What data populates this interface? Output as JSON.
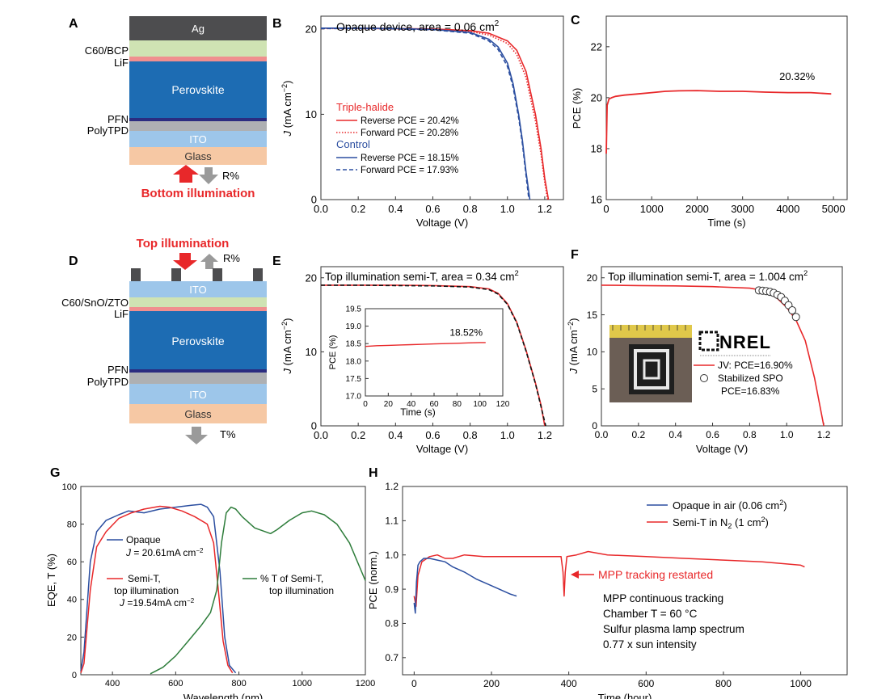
{
  "colors": {
    "red": "#e8282a",
    "blue": "#2b4ea0",
    "green": "#2e7d3b",
    "ag": "#4d4d4f",
    "c60": "#cfe3b3",
    "lif": "#f08f8f",
    "perovskite": "#1d6cb3",
    "pfn": "#2b2c80",
    "polytpd": "#aeb0b3",
    "ito": "#9dc6ea",
    "glass": "#f6c8a4",
    "gray_arrow": "#9a9a9a"
  },
  "panel_a": {
    "letter": "A",
    "layers": [
      "Ag",
      "C60/BCP",
      "LiF",
      "Perovskite",
      "PFN",
      "PolyTPD",
      "ITO",
      "Glass"
    ],
    "r_label": "R%",
    "illumination": "Bottom illumination"
  },
  "panel_d": {
    "letter": "D",
    "illumination": "Top illumination",
    "r_label": "R%",
    "t_label": "T%",
    "layers": [
      "ITO",
      "C60/SnO/ZTO",
      "LiF",
      "Perovskite",
      "PFN",
      "PolyTPD",
      "ITO",
      "Glass"
    ]
  },
  "chart_data": [
    {
      "id": "B",
      "letter": "B",
      "type": "line",
      "title_pre": "Opaque device, area = 0.06 cm",
      "title_sup": "2",
      "xlabel": "Voltage (V)",
      "ylabel_pre": "J (mA cm",
      "ylabel_sup": "−2",
      "ylabel_post": ")",
      "xlim": [
        0,
        1.3
      ],
      "ylim": [
        0,
        21.5
      ],
      "xticks": [
        "0.0",
        "0.2",
        "0.4",
        "0.6",
        "0.8",
        "1.0",
        "1.2"
      ],
      "xtick_values": [
        0,
        0.2,
        0.4,
        0.6,
        0.8,
        1.0,
        1.2
      ],
      "yticks": [
        "0",
        "10",
        "20"
      ],
      "ytick_values": [
        0,
        10,
        20
      ],
      "legend": {
        "group1": "Triple-halide",
        "group2": "Control",
        "entries": [
          "Reverse  PCE = 20.42%",
          "Forward  PCE = 20.28%",
          "Reverse  PCE = 18.15%",
          "Forward  PCE = 17.93%"
        ]
      },
      "series": [
        {
          "group": "Triple-halide",
          "style": "solid-red",
          "x": [
            0,
            0.2,
            0.4,
            0.6,
            0.8,
            0.9,
            1.0,
            1.05,
            1.1,
            1.15,
            1.18,
            1.2,
            1.22
          ],
          "y": [
            20.1,
            20.1,
            20.05,
            20.0,
            19.8,
            19.5,
            18.6,
            17.5,
            15.0,
            10.0,
            6.0,
            2.5,
            0
          ]
        },
        {
          "group": "Triple-halide",
          "style": "dotted-red",
          "x": [
            0,
            0.2,
            0.4,
            0.6,
            0.8,
            0.9,
            1.0,
            1.05,
            1.1,
            1.15,
            1.18,
            1.2,
            1.215
          ],
          "y": [
            20.05,
            20.05,
            20.0,
            19.95,
            19.7,
            19.3,
            18.3,
            17.0,
            14.3,
            9.2,
            5.3,
            2.0,
            0
          ]
        },
        {
          "group": "Control",
          "style": "solid-blue",
          "x": [
            0,
            0.2,
            0.4,
            0.6,
            0.8,
            0.9,
            0.95,
            1.0,
            1.03,
            1.06,
            1.08,
            1.1,
            1.12
          ],
          "y": [
            20.1,
            20.1,
            20.05,
            19.95,
            19.6,
            18.8,
            17.9,
            16.0,
            13.6,
            10.0,
            7.0,
            3.2,
            0
          ]
        },
        {
          "group": "Control",
          "style": "dashed-blue",
          "x": [
            0,
            0.2,
            0.4,
            0.6,
            0.8,
            0.9,
            0.95,
            1.0,
            1.03,
            1.06,
            1.08,
            1.1,
            1.115
          ],
          "y": [
            20.05,
            20.05,
            20.0,
            19.9,
            19.5,
            18.6,
            17.6,
            15.6,
            13.2,
            9.6,
            6.6,
            2.8,
            0
          ]
        }
      ]
    },
    {
      "id": "C",
      "letter": "C",
      "type": "line",
      "xlabel": "Time (s)",
      "ylabel": "PCE (%)",
      "xlim": [
        0,
        5300
      ],
      "ylim": [
        16,
        23.2
      ],
      "xticks": [
        "0",
        "1000",
        "2000",
        "3000",
        "4000",
        "5000"
      ],
      "xtick_values": [
        0,
        1000,
        2000,
        3000,
        4000,
        5000
      ],
      "yticks": [
        "16",
        "18",
        "20",
        "22"
      ],
      "ytick_values": [
        16,
        18,
        20,
        22
      ],
      "annotation": "20.32%",
      "series": [
        {
          "x": [
            0,
            20,
            60,
            120,
            200,
            400,
            700,
            1000,
            1300,
            1600,
            2000,
            2500,
            3000,
            3500,
            4000,
            4500,
            4950
          ],
          "y": [
            17.8,
            19.7,
            19.95,
            20.0,
            20.05,
            20.1,
            20.15,
            20.2,
            20.25,
            20.27,
            20.28,
            20.25,
            20.25,
            20.22,
            20.2,
            20.2,
            20.15
          ]
        }
      ]
    },
    {
      "id": "E",
      "letter": "E",
      "type": "line",
      "title_pre": "Top illumination semi-T, area = 0.34 cm",
      "title_sup": "2",
      "xlabel": "Voltage (V)",
      "ylabel_pre": "J (mA cm",
      "ylabel_sup": "−2",
      "ylabel_post": ")",
      "xlim": [
        0,
        1.3
      ],
      "ylim": [
        0,
        21.5
      ],
      "xticks": [
        "0.0",
        "0.2",
        "0.4",
        "0.6",
        "0.8",
        "1.0",
        "1.2"
      ],
      "xtick_values": [
        0,
        0.2,
        0.4,
        0.6,
        0.8,
        1.0,
        1.2
      ],
      "yticks": [
        "0",
        "10",
        "20"
      ],
      "ytick_values": [
        0,
        10,
        20
      ],
      "series": [
        {
          "style": "solid-red",
          "x": [
            0,
            0.2,
            0.4,
            0.6,
            0.8,
            0.9,
            0.95,
            1.0,
            1.05,
            1.1,
            1.15,
            1.18,
            1.2
          ],
          "y": [
            19.0,
            19.0,
            19.0,
            18.95,
            18.8,
            18.5,
            17.9,
            16.5,
            14.0,
            10.2,
            5.8,
            2.8,
            0
          ]
        },
        {
          "style": "dashed-black",
          "x": [
            0,
            0.2,
            0.4,
            0.6,
            0.8,
            0.9,
            0.95,
            1.0,
            1.05,
            1.1,
            1.15,
            1.18,
            1.205
          ],
          "y": [
            19.0,
            19.0,
            18.95,
            18.9,
            18.75,
            18.4,
            17.8,
            16.4,
            13.9,
            10.1,
            5.7,
            2.6,
            0
          ]
        }
      ],
      "inset": {
        "xlabel": "Time (s)",
        "ylabel": "PCE (%)",
        "xlim": [
          0,
          120
        ],
        "ylim": [
          17.0,
          19.5
        ],
        "xticks": [
          "0",
          "20",
          "40",
          "60",
          "80",
          "100",
          "120"
        ],
        "xtick_values": [
          0,
          20,
          40,
          60,
          80,
          100,
          120
        ],
        "yticks": [
          "17.0",
          "17.5",
          "18.0",
          "18.5",
          "19.0",
          "19.5"
        ],
        "ytick_values": [
          17.0,
          17.5,
          18.0,
          18.5,
          19.0,
          19.5
        ],
        "annotation": "18.52%",
        "x": [
          0,
          10,
          20,
          30,
          40,
          50,
          60,
          70,
          80,
          90,
          100,
          105
        ],
        "y": [
          18.42,
          18.44,
          18.45,
          18.46,
          18.47,
          18.48,
          18.49,
          18.5,
          18.51,
          18.52,
          18.53,
          18.53
        ]
      }
    },
    {
      "id": "F",
      "letter": "F",
      "type": "line",
      "title_pre": "Top illumination semi-T, area = 1.004 cm",
      "title_sup": "2",
      "xlabel": "Voltage (V)",
      "ylabel_pre": "J (mA cm",
      "ylabel_sup": "−2",
      "ylabel_post": ")",
      "xlim": [
        0,
        1.3
      ],
      "ylim": [
        0,
        21.5
      ],
      "xticks": [
        "0.0",
        "0.2",
        "0.4",
        "0.6",
        "0.8",
        "1.0",
        "1.2"
      ],
      "xtick_values": [
        0,
        0.2,
        0.4,
        0.6,
        0.8,
        1.0,
        1.2
      ],
      "yticks": [
        "0",
        "5",
        "10",
        "15",
        "20"
      ],
      "ytick_values": [
        0,
        5,
        10,
        15,
        20
      ],
      "legend": {
        "entries": [
          "JV: PCE=16.90%",
          "Stabilized SPO",
          "PCE=16.83%"
        ]
      },
      "logo": "NREL",
      "series": [
        {
          "style": "solid-red",
          "x": [
            0,
            0.2,
            0.4,
            0.6,
            0.8,
            0.85,
            0.9,
            0.95,
            1.0,
            1.05,
            1.1,
            1.15,
            1.2
          ],
          "y": [
            19.0,
            18.95,
            18.9,
            18.8,
            18.6,
            18.4,
            18.0,
            17.2,
            16.0,
            14.3,
            11.5,
            6.5,
            0
          ]
        },
        {
          "style": "circles",
          "x": [
            0.85,
            0.87,
            0.89,
            0.91,
            0.93,
            0.95,
            0.97,
            0.99,
            1.01,
            1.03,
            1.05
          ],
          "y": [
            18.3,
            18.25,
            18.2,
            18.1,
            17.95,
            17.7,
            17.4,
            16.9,
            16.3,
            15.6,
            14.7
          ]
        }
      ]
    },
    {
      "id": "G",
      "letter": "G",
      "type": "line",
      "xlabel": "Wavelength (nm)",
      "ylabel": "EQE, T (%)",
      "xlim": [
        300,
        1200
      ],
      "ylim": [
        0,
        100
      ],
      "xticks": [
        "400",
        "600",
        "800",
        "1000",
        "1200"
      ],
      "xtick_values": [
        400,
        600,
        800,
        1000,
        1200
      ],
      "yticks": [
        "0",
        "20",
        "40",
        "60",
        "80",
        "100"
      ],
      "ytick_values": [
        0,
        20,
        40,
        60,
        80,
        100
      ],
      "labels": {
        "opaque": "Opaque",
        "opaque_j_pre": "J",
        "opaque_j": " = 20.61mA cm",
        "opaque_j_sup": "−2",
        "semit_1": "Semi-T,",
        "semit_2": "top illumination",
        "semit_j_pre": "J",
        "semit_j": " =19.54mA cm",
        "semit_j_sup": "−2",
        "t_1": "% T of Semi-T,",
        "t_2": "top illumination"
      },
      "series": [
        {
          "name": "Opaque",
          "style": "blue",
          "x": [
            300,
            310,
            330,
            350,
            380,
            420,
            450,
            500,
            550,
            600,
            650,
            680,
            700,
            720,
            740,
            755,
            770,
            790
          ],
          "y": [
            2,
            12,
            60,
            76,
            82,
            85,
            87,
            86,
            88,
            89,
            90,
            90.5,
            89,
            84,
            55,
            20,
            5,
            1
          ]
        },
        {
          "name": "Semi-T, top illumination",
          "style": "red",
          "x": [
            300,
            310,
            330,
            350,
            380,
            420,
            460,
            500,
            550,
            580,
            620,
            660,
            700,
            720,
            735,
            750,
            765,
            780
          ],
          "y": [
            1,
            6,
            45,
            68,
            76,
            83,
            86,
            88,
            89.5,
            89,
            87,
            84,
            80,
            70,
            45,
            18,
            5,
            1
          ]
        },
        {
          "name": "% T of Semi-T, top illumination",
          "style": "green",
          "x": [
            520,
            560,
            600,
            640,
            680,
            710,
            730,
            745,
            760,
            775,
            790,
            810,
            850,
            900,
            920,
            960,
            1000,
            1030,
            1070,
            1110,
            1150,
            1200
          ],
          "y": [
            0.5,
            4,
            10,
            18,
            26,
            33,
            45,
            70,
            86,
            89,
            88,
            84,
            78,
            75,
            77,
            82,
            86,
            87,
            85,
            80,
            70,
            50
          ]
        }
      ]
    },
    {
      "id": "H",
      "letter": "H",
      "type": "line",
      "xlabel": "Time (hour)",
      "ylabel": "PCE (norm.)",
      "xlim": [
        -30,
        1120
      ],
      "ylim": [
        0.65,
        1.2
      ],
      "xticks": [
        "0",
        "200",
        "400",
        "600",
        "800",
        "1000"
      ],
      "xtick_values": [
        0,
        200,
        400,
        600,
        800,
        1000
      ],
      "yticks": [
        "0.7",
        "0.8",
        "0.9",
        "1.0",
        "1.1",
        "1.2"
      ],
      "ytick_values": [
        0.7,
        0.8,
        0.9,
        1.0,
        1.1,
        1.2
      ],
      "legend": {
        "opaque_pre": "Opaque in air (0.06 cm",
        "opaque_sup": "2",
        "opaque_post": ")",
        "semit_pre": "Semi-T in N",
        "semit_sub": "2",
        "semit_mid": " (1 cm",
        "semit_sup": "2",
        "semit_post": ")"
      },
      "annotation": "MPP tracking restarted",
      "notes": [
        "MPP continuous tracking",
        "Chamber T = 60 °C",
        "Sulfur plasma lamp spectrum",
        "0.77 x sun intensity"
      ],
      "series": [
        {
          "name": "Opaque in air (0.06 cm2)",
          "style": "blue",
          "x": [
            0,
            3,
            6,
            10,
            15,
            25,
            40,
            60,
            80,
            100,
            130,
            160,
            190,
            220,
            250,
            265
          ],
          "y": [
            0.86,
            0.83,
            0.92,
            0.97,
            0.98,
            0.99,
            0.99,
            0.985,
            0.98,
            0.965,
            0.95,
            0.93,
            0.915,
            0.9,
            0.885,
            0.88
          ]
        },
        {
          "name": "Semi-T in N2 (1 cm2)",
          "style": "red",
          "x": [
            0,
            5,
            10,
            20,
            40,
            60,
            80,
            100,
            130,
            180,
            250,
            320,
            380,
            385,
            388,
            391,
            395,
            420,
            450,
            500,
            600,
            700,
            800,
            900,
            1000,
            1010
          ],
          "y": [
            0.88,
            0.85,
            0.94,
            0.98,
            0.995,
            1.0,
            0.99,
            0.99,
            1.0,
            0.995,
            0.995,
            0.995,
            0.995,
            0.95,
            0.88,
            0.95,
            0.995,
            1.0,
            1.01,
            1.0,
            0.995,
            0.99,
            0.985,
            0.98,
            0.97,
            0.965
          ]
        }
      ]
    }
  ]
}
